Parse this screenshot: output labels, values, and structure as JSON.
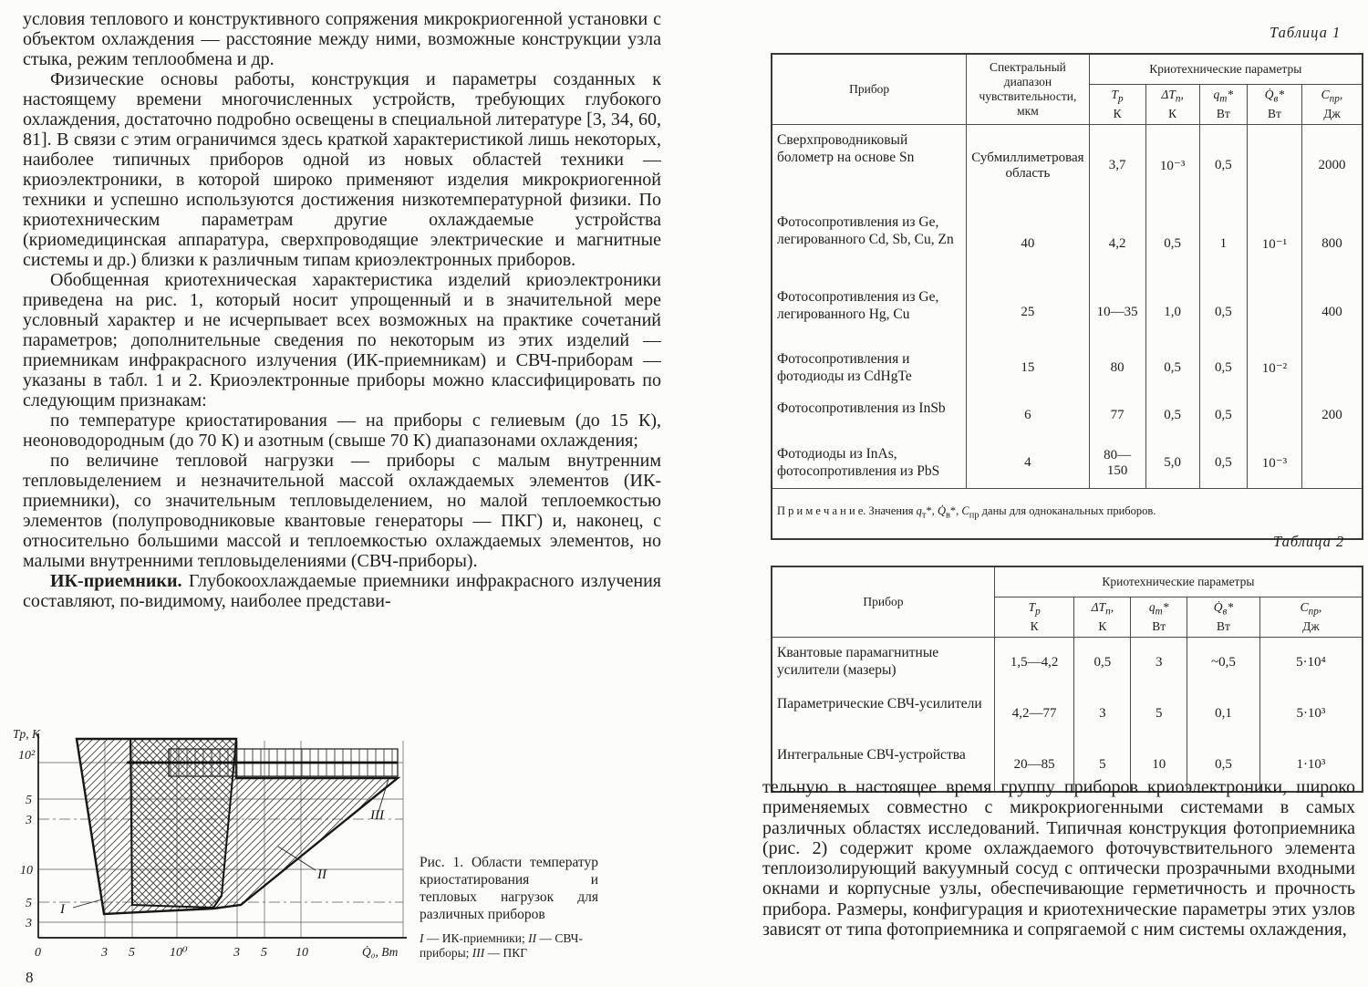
{
  "page": {
    "number": "8"
  },
  "left_column": {
    "paragraphs": [
      {
        "text": "условия теплового и конструктивного сопряжения микрокриогенной установки с объектом охлаждения — расстояние между ними, возможные конструкции узла стыка, режим теплообмена и др."
      },
      {
        "text": "Физические основы работы, конструкция и параметры созданных к настоящему времени многочисленных устройств, требующих глубокого охлаждения, достаточно подробно освещены в специальной литературе [3, 34, 60, 81]. В связи с этим ограничимся здесь краткой характеристикой лишь некоторых, наиболее типичных приборов одной из новых областей техники — криоэлектроники, в которой широко применяют изделия микрокриогенной техники и успешно используются достижения низкотемпературной физики. По криотехническим параметрам другие охлаждаемые устройства (криомедицинская аппаратура, сверхпроводящие электрические и магнитные системы и др.) близки к различным типам криоэлектронных приборов."
      },
      {
        "text": "Обобщенная криотехническая характеристика изделий криоэлектроники приведена на рис. 1, который носит упрощенный и в значительной мере условный характер и не исчерпывает всех возможных на практике сочетаний параметров; дополнительные сведения по некоторым из этих изделий — приемникам инфракрасного излучения (ИК-приемникам) и СВЧ-приборам — указаны в табл. 1 и 2. Криоэлектронные приборы можно классифицировать по следующим признакам:"
      },
      {
        "text": "по температуре криостатирования — на приборы с гелиевым (до 15 К), неоноводородным (до 70 К) и азотным (свыше 70 К) диапазонами охлаждения;"
      },
      {
        "text": "по величине тепловой нагрузки — приборы с малым внутренним тепловыделением и незначительной массой охлаждаемых элементов (ИК-приемники), со значительным тепловыделением, но малой теплоемкостью элементов (полупроводниковые квантовые генераторы — ПКГ) и, наконец, с относительно большими массой и теплоемкостью охлаждаемых элементов, но малыми внутренними тепловыделениями (СВЧ-приборы)."
      },
      {
        "lead": "ИК-приемники.",
        "text": " Глубокоохлаждаемые приемники инфракрасного излучения составляют, по-видимому, наиболее представи-"
      }
    ]
  },
  "figure": {
    "caption_title": "Рис. 1. Области температур криостатирования и тепловых нагрузок для различных приборов",
    "legend_html": "<i>I</i> — ИК-приемники; <i>II</i> — СВЧ-приборы; <i>III</i> — ПКГ",
    "chart": {
      "ylabel": "Tр, К",
      "xlabel": "Q̇₀, Вт",
      "y_top_tick": "10²",
      "y_ticks": [
        "5",
        "3",
        "10",
        "5",
        "3"
      ],
      "x_ticks": [
        "0",
        "3",
        "5",
        "10⁰",
        "3",
        "5",
        "10"
      ],
      "region_labels": [
        "I",
        "II",
        "III"
      ]
    }
  },
  "chart_data": {
    "type": "area",
    "title": "Рис. 1. Области температур криостатирования и тепловых нагрузок для различных приборов",
    "xlabel": "Q̇₀, Вт",
    "ylabel": "Tр, К",
    "x_scale": "log",
    "y_scale": "log",
    "x_ticks": [
      "0",
      "3",
      "5",
      "10⁰",
      "3",
      "5",
      "10"
    ],
    "y_ticks": [
      "10²",
      "5",
      "3",
      "10",
      "5",
      "3"
    ],
    "grid": true,
    "legend_position": "caption",
    "regions": [
      {
        "label": "I",
        "name": "ИК-приемники",
        "T_range_K": [
          4,
          120
        ],
        "Q0_range_W": [
          0.25,
          2.5
        ],
        "hatch": "cross"
      },
      {
        "label": "II",
        "name": "СВЧ-приборы",
        "T_range_K": [
          4.5,
          120
        ],
        "Q0_range_W": [
          0.15,
          30
        ],
        "hatch": "diagonal"
      },
      {
        "label": "III",
        "name": "ПКГ",
        "T_range_K": [
          75,
          120
        ],
        "Q0_range_W": [
          0.7,
          30
        ],
        "hatch": "vertical"
      }
    ]
  },
  "tables": {
    "param_cols": [
      {
        "sym": "T<sub>р</sub>",
        "unit": "К"
      },
      {
        "sym": "ΔT<sub>п</sub>,",
        "unit": "К"
      },
      {
        "sym": "q<sub>т</sub>*",
        "unit": "Вт"
      },
      {
        "sym": "Q̇<sub>в</sub>*",
        "unit": "Вт"
      },
      {
        "sym": "С<sub>пр</sub>,",
        "unit": "Дж"
      }
    ]
  },
  "table1": {
    "label": "Таблица 1",
    "device_header": "Прибор",
    "spectral_header": "Спектральный диапазон чувствительности, мкм",
    "group_header": "Криотехнические параметры",
    "rows": [
      [
        "Сверхпроводниковый болометр на основе Sn",
        "Субмиллиметровая область",
        "3,7",
        "10⁻³",
        "0,5",
        "",
        "2000"
      ],
      [
        "Фотосопротивления из Ge, легированного Cd, Sb, Cu, Zn",
        "40",
        "4,2",
        "0,5",
        "1",
        "10⁻¹",
        "800"
      ],
      [
        "Фотосопротивления из Ge, легированного Hg, Cu",
        "25",
        "10—35",
        "1,0",
        "0,5",
        "",
        "400"
      ],
      [
        "Фотосопротивления и фотодиоды из CdHgTe",
        "15",
        "80",
        "0,5",
        "0,5",
        "10⁻²",
        ""
      ],
      [
        "Фотосопротивления из InSb",
        "6",
        "77",
        "0,5",
        "0,5",
        "",
        "200"
      ],
      [
        "Фотодиоды из InAs, фотосопротивления из PbS",
        "4",
        "80—150",
        "5,0",
        "0,5",
        "10⁻³",
        ""
      ]
    ],
    "footnote_html": "П р и м е ч а н и е.  Значения <i>q</i><sub>т</sub>*, <i>Q̇</i><sub>в</sub>*, <i>С</i><sub>пр</sub> даны для одноканальных приборов."
  },
  "table2": {
    "label": "Таблица 2",
    "device_header": "Прибор",
    "group_header": "Криотехнические параметры",
    "rows": [
      [
        "Квантовые парамагнитные усилители (мазеры)",
        "1,5—4,2",
        "0,5",
        "3",
        "~0,5",
        "5·10⁴"
      ],
      [
        "Параметрические СВЧ-усилители",
        "4,2—77",
        "3",
        "5",
        "0,1",
        "5·10³"
      ],
      [
        "Интегральные СВЧ-устройства",
        "20—85",
        "5",
        "10",
        "0,5",
        "1·10³"
      ]
    ]
  },
  "right_column": {
    "text": "тельную в настоящее время группу приборов криоэлектроники, широко применяемых совместно с микрокриогенными системами в самых различных областях исследований. Типичная конструкция фотоприемника (рис. 2) содержит кроме охлаждаемого фоточувствительного элемента теплоизолирующий вакуумный сосуд с оптически прозрачными входными окнами и корпусные узлы, обеспечивающие герметичность и прочность прибора. Размеры, конфигурация и криотехнические параметры этих узлов зависят от типа фотоприемника и сопрягаемой с ним системы охлаждения,"
  }
}
